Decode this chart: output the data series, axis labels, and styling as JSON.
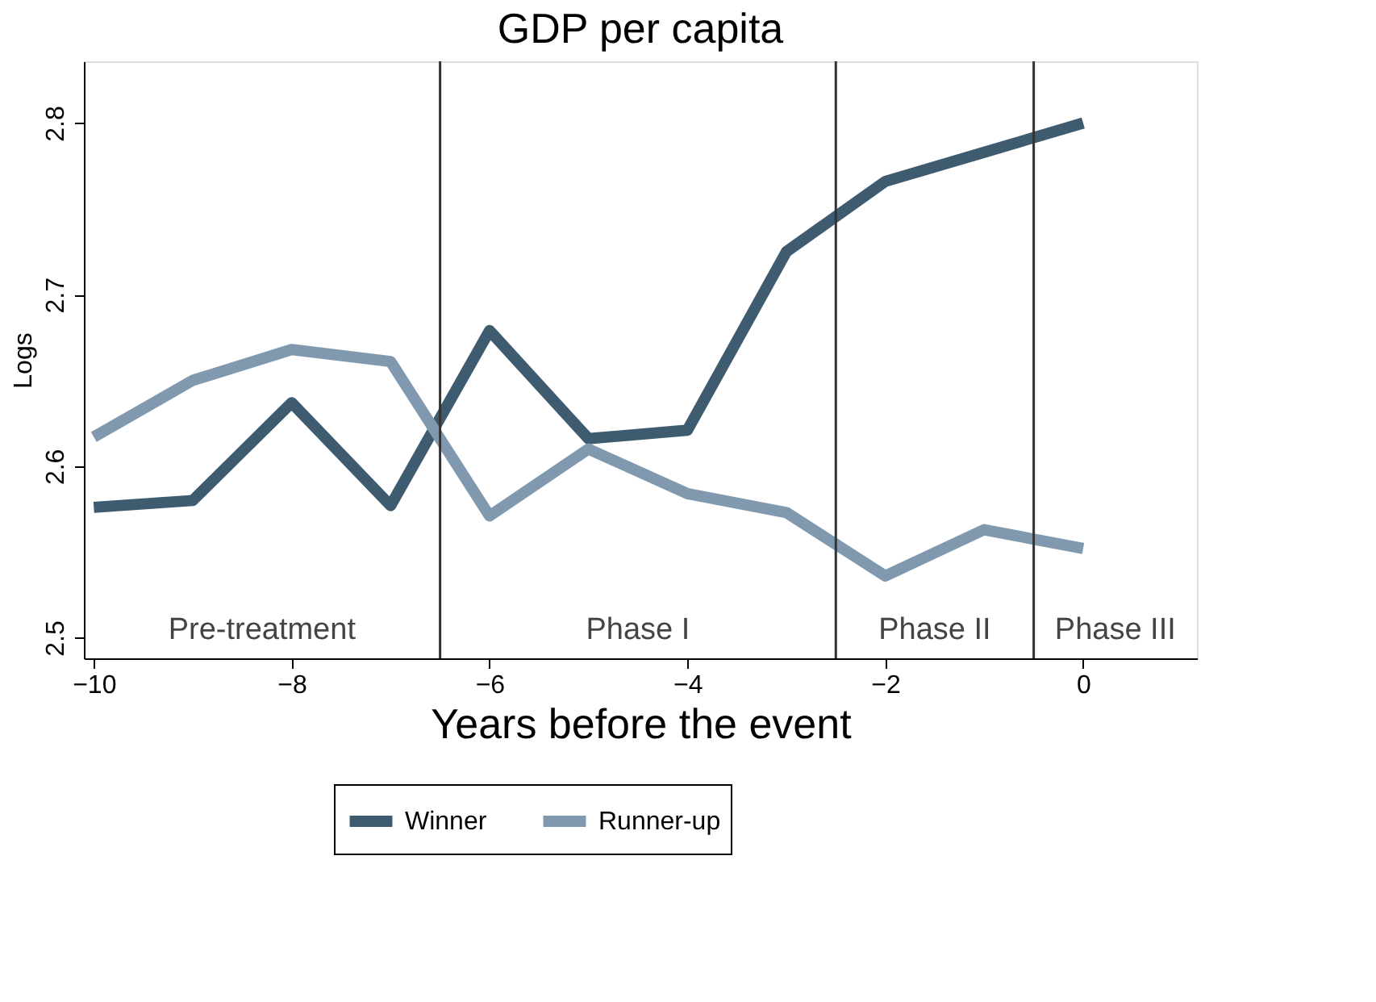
{
  "chart_data": {
    "type": "line",
    "title": "GDP per capita",
    "xlabel": "Years before the event",
    "ylabel": "Logs",
    "x": [
      -10,
      -9,
      -8,
      -7,
      -6,
      -5,
      -4,
      -3,
      -2,
      -1,
      0
    ],
    "series": [
      {
        "name": "Winner",
        "color": "#3e5b70",
        "values": [
          2.576,
          2.58,
          2.637,
          2.577,
          2.679,
          2.616,
          2.621,
          2.725,
          2.766,
          2.783,
          2.8
        ]
      },
      {
        "name": "Runner-up",
        "color": "#8099ae",
        "values": [
          2.617,
          2.65,
          2.668,
          2.661,
          2.571,
          2.61,
          2.584,
          2.573,
          2.536,
          2.563,
          2.552
        ]
      }
    ],
    "xlim": [
      -10.1,
      1.15
    ],
    "xticks": [
      -10,
      -8,
      -6,
      -4,
      -2,
      0
    ],
    "ylim": [
      2.488,
      2.836
    ],
    "yticks": [
      {
        "value": 2.5,
        "label": "2.5"
      },
      {
        "value": 2.6,
        "label": "2.6"
      },
      {
        "value": 2.7,
        "label": "2.7"
      },
      {
        "value": 2.8,
        "label": "2.8"
      }
    ],
    "ref_lines": [
      {
        "axis": "x",
        "value": -6.5,
        "color": "#333333"
      },
      {
        "axis": "x",
        "value": -2.5,
        "color": "#333333"
      },
      {
        "axis": "x",
        "value": -0.5,
        "color": "#333333"
      }
    ],
    "annotations": [
      "Pre-treatment",
      "Phase I",
      "Phase II",
      "Phase III"
    ],
    "legend": "bottom",
    "grid": false,
    "marker": "none",
    "line_style": "solid"
  }
}
